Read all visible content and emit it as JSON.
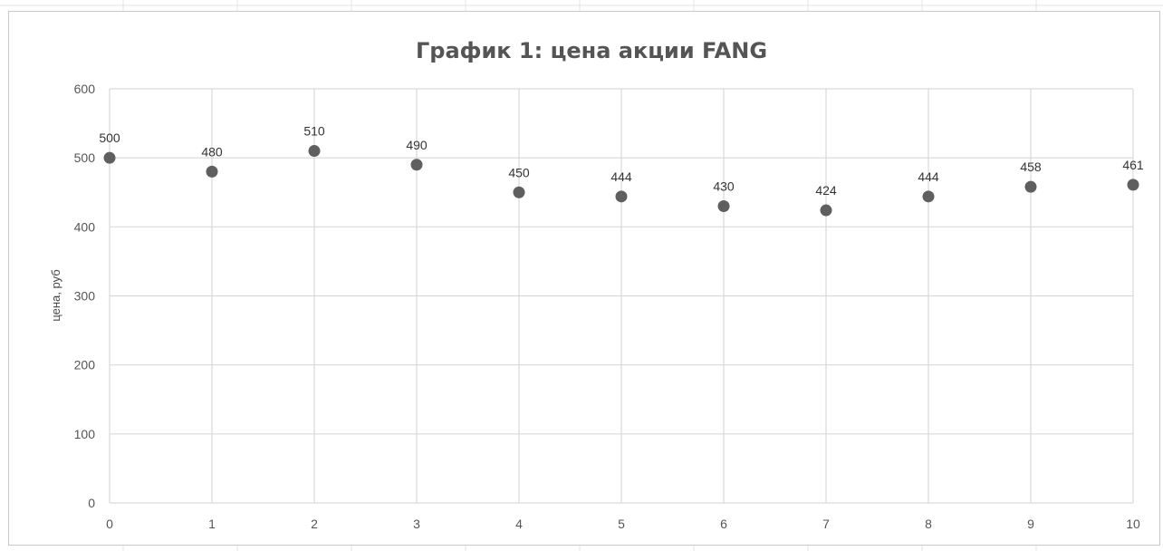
{
  "chart_data": {
    "type": "scatter",
    "title": "График 1: цена акции FANG",
    "xlabel": "",
    "ylabel": "цена, руб",
    "x": [
      0,
      1,
      2,
      3,
      4,
      5,
      6,
      7,
      8,
      9,
      10
    ],
    "y": [
      500,
      480,
      510,
      490,
      450,
      444,
      430,
      424,
      444,
      458,
      461
    ],
    "data_labels": [
      "500",
      "480",
      "510",
      "490",
      "450",
      "444",
      "430",
      "424",
      "444",
      "458",
      "461"
    ],
    "xlim": [
      0,
      10
    ],
    "ylim": [
      0,
      600
    ],
    "x_ticks": [
      0,
      1,
      2,
      3,
      4,
      5,
      6,
      7,
      8,
      9,
      10
    ],
    "y_ticks": [
      0,
      100,
      200,
      300,
      400,
      500,
      600
    ],
    "grid": true,
    "legend": "none",
    "colors": {
      "marker": "#5f5f5f",
      "grid": "#d9d9d9",
      "title": "#555555"
    }
  }
}
